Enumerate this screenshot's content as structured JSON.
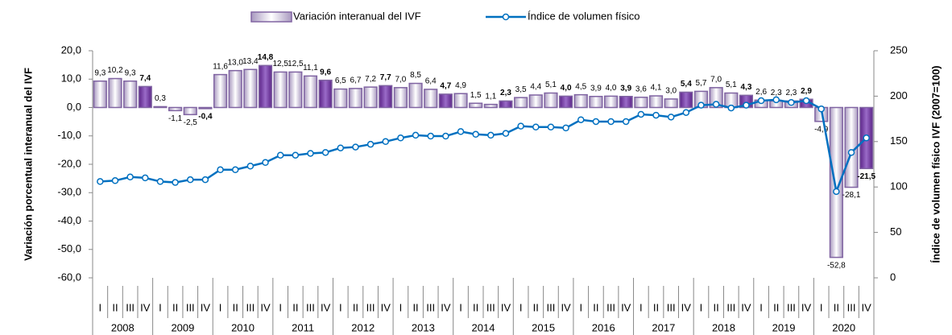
{
  "chart_data": {
    "type": "bar_line",
    "years": [
      "2008",
      "2009",
      "2010",
      "2011",
      "2012",
      "2013",
      "2014",
      "2015",
      "2016",
      "2017",
      "2018",
      "2019",
      "2020"
    ],
    "categories": [
      "I",
      "II",
      "III",
      "IV",
      "I",
      "II",
      "III",
      "IV",
      "I",
      "II",
      "III",
      "IV",
      "I",
      "II",
      "III",
      "IV",
      "I",
      "II",
      "III",
      "IV",
      "I",
      "II",
      "III",
      "IV",
      "I",
      "II",
      "III",
      "IV",
      "I",
      "II",
      "III",
      "IV",
      "I",
      "II",
      "III",
      "IV",
      "I",
      "II",
      "III",
      "IV",
      "I",
      "II",
      "III",
      "IV",
      "I",
      "II",
      "III",
      "IV",
      "I",
      "II",
      "III",
      "IV"
    ],
    "series": [
      {
        "name": "Variación interanual del IVF",
        "type": "bar",
        "color": "#8064a2",
        "axis": "y",
        "values": [
          9.3,
          10.2,
          9.3,
          7.4,
          0.3,
          -1.1,
          -2.5,
          -0.4,
          11.6,
          13.0,
          13.4,
          14.8,
          12.5,
          12.5,
          11.1,
          9.6,
          6.5,
          6.7,
          7.2,
          7.7,
          7.0,
          8.5,
          6.4,
          4.7,
          4.9,
          1.5,
          1.1,
          2.3,
          3.5,
          4.4,
          5.1,
          4.0,
          4.5,
          3.9,
          4.0,
          3.9,
          3.6,
          4.1,
          3.0,
          5.4,
          5.7,
          7.0,
          5.1,
          4.3,
          2.6,
          2.3,
          2.3,
          2.9,
          -4.9,
          -52.8,
          -28.1,
          -21.5
        ],
        "value_labels": [
          "9,3",
          "10,2",
          "9,3",
          "7,4",
          "0,3",
          "-1,1",
          "-2,5",
          "-0,4",
          "11,6",
          "13,0",
          "13,4",
          "14,8",
          "12,5",
          "12,5",
          "11,1",
          "9,6",
          "6,5",
          "6,7",
          "7,2",
          "7,7",
          "7,0",
          "8,5",
          "6,4",
          "4,7",
          "4,9",
          "1,5",
          "1,1",
          "2,3",
          "3,5",
          "4,4",
          "5,1",
          "4,0",
          "4,5",
          "3,9",
          "4,0",
          "3,9",
          "3,6",
          "4,1",
          "3,0",
          "5,4",
          "5,7",
          "7,0",
          "5,1",
          "4,3",
          "2,6",
          "2,3",
          "2,3",
          "2,9",
          "-4,9",
          "-52,8",
          "-28,1",
          "-21,5"
        ]
      },
      {
        "name": "Índice de volumen físico",
        "type": "line",
        "color": "#0070c0",
        "axis": "y2",
        "values": [
          106,
          107,
          111,
          110,
          106,
          105,
          108,
          108,
          119,
          119,
          123,
          127,
          135,
          135,
          137,
          138,
          143,
          144,
          147,
          150,
          154,
          157,
          156,
          156,
          161,
          158,
          157,
          159,
          167,
          166,
          166,
          165,
          174,
          172,
          172,
          172,
          180,
          179,
          177,
          182,
          190,
          191,
          187,
          190,
          195,
          196,
          193,
          195,
          186,
          95,
          138,
          154
        ]
      }
    ],
    "ylabel": "Variación porcentual interanual del IVF",
    "y2label": "Índice de volumen físico IVF (2007=100)",
    "ylim": [
      -60,
      20
    ],
    "yticks": [
      {
        "value": -60,
        "label": "-60,0"
      },
      {
        "value": -50,
        "label": "-50,0"
      },
      {
        "value": -40,
        "label": "-40,0"
      },
      {
        "value": -30,
        "label": "-30,0"
      },
      {
        "value": -20,
        "label": "-20,0"
      },
      {
        "value": -10,
        "label": "-10,0"
      },
      {
        "value": 0,
        "label": "0,0"
      },
      {
        "value": 10,
        "label": "10,0"
      },
      {
        "value": 20,
        "label": "20,0"
      }
    ],
    "y2lim": [
      0,
      250
    ],
    "y2ticks": [
      0,
      50,
      100,
      150,
      200,
      250
    ]
  }
}
